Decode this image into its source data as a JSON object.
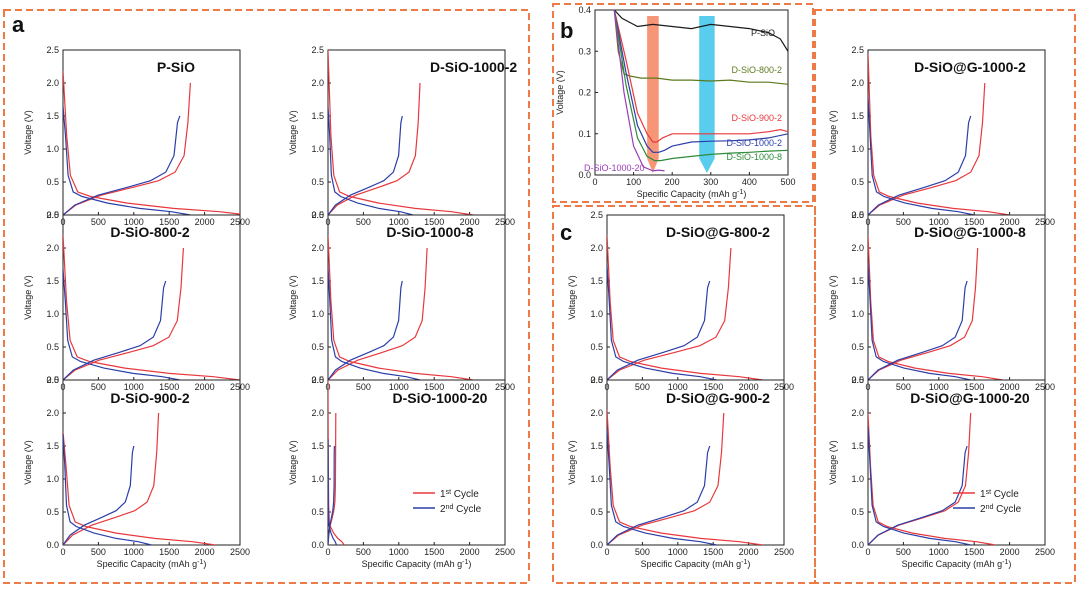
{
  "labels": {
    "a": "a",
    "b": "b",
    "c": "c"
  },
  "axis_text": {
    "xlabel": "Specific Capacity (mAh g",
    "xlabel_sup": "-1",
    "xlabel_end": ")",
    "ylabel": "Voltage (V)"
  },
  "legend": {
    "first": "1",
    "first_sup": "st",
    "first_rest": " Cycle",
    "second": "2",
    "second_sup": "nd",
    "second_rest": " Cycle"
  },
  "colors": {
    "first": "#e8383d",
    "second": "#2b3fa8",
    "border": "#ee7a48"
  },
  "chart_data": [
    {
      "type": "line",
      "panel": "a",
      "title": "P-SiO",
      "xlabel": "Specific Capacity (mAh g-1)",
      "ylabel": "Voltage (V)",
      "xlim": [
        0,
        2500
      ],
      "ylim": [
        0,
        2.5
      ],
      "xticks": [
        0,
        500,
        1000,
        1500,
        2000,
        2500
      ],
      "yticks": [
        0.0,
        0.5,
        1.0,
        1.5,
        2.0,
        2.5
      ],
      "series": [
        {
          "name": "1st Cycle",
          "initial_voltage": 2.18,
          "discharge_capacity": 2600,
          "charge_capacity": 1800,
          "charge_end_voltage": 2.0
        },
        {
          "name": "2nd Cycle",
          "initial_voltage": 1.65,
          "discharge_capacity": 1800,
          "charge_capacity": 1650,
          "charge_end_voltage": 1.5
        }
      ]
    },
    {
      "type": "line",
      "panel": "a",
      "title": "D-SiO-1000-2",
      "xlabel": "Specific Capacity (mAh g-1)",
      "ylabel": "Voltage (V)",
      "xlim": [
        0,
        2500
      ],
      "ylim": [
        0,
        2.5
      ],
      "xticks": [
        0,
        500,
        1000,
        1500,
        2000,
        2500
      ],
      "yticks": [
        0.0,
        0.5,
        1.0,
        1.5,
        2.0,
        2.5
      ],
      "series": [
        {
          "name": "1st Cycle",
          "initial_voltage": 2.5,
          "discharge_capacity": 2050,
          "charge_capacity": 1300,
          "charge_end_voltage": 2.0
        },
        {
          "name": "2nd Cycle",
          "initial_voltage": 1.65,
          "discharge_capacity": 1200,
          "charge_capacity": 1050,
          "charge_end_voltage": 1.5
        }
      ]
    },
    {
      "type": "line",
      "panel": "a",
      "title": "D-SiO-800-2",
      "xlabel": "Specific Capacity (mAh g-1)",
      "ylabel": "Voltage (V)",
      "xlim": [
        0,
        2500
      ],
      "ylim": [
        0,
        2.5
      ],
      "xticks": [
        0,
        500,
        1000,
        1500,
        2000,
        2500
      ],
      "yticks": [
        0.0,
        0.5,
        1.0,
        1.5,
        2.0,
        2.5
      ],
      "series": [
        {
          "name": "1st Cycle",
          "initial_voltage": 2.2,
          "discharge_capacity": 2500,
          "charge_capacity": 1700,
          "charge_end_voltage": 2.0
        },
        {
          "name": "2nd Cycle",
          "initial_voltage": 1.68,
          "discharge_capacity": 1650,
          "charge_capacity": 1450,
          "charge_end_voltage": 1.5
        }
      ]
    },
    {
      "type": "line",
      "panel": "a",
      "title": "D-SiO-1000-8",
      "xlabel": "Specific Capacity (mAh g-1)",
      "ylabel": "Voltage (V)",
      "xlim": [
        0,
        2500
      ],
      "ylim": [
        0,
        2.5
      ],
      "xticks": [
        0,
        500,
        1000,
        1500,
        2000,
        2500
      ],
      "yticks": [
        0.0,
        0.5,
        1.0,
        1.5,
        2.0,
        2.5
      ],
      "series": [
        {
          "name": "1st Cycle",
          "initial_voltage": 2.2,
          "discharge_capacity": 2050,
          "charge_capacity": 1400,
          "charge_end_voltage": 2.0
        },
        {
          "name": "2nd Cycle",
          "initial_voltage": 1.72,
          "discharge_capacity": 1300,
          "charge_capacity": 1050,
          "charge_end_voltage": 1.5
        }
      ]
    },
    {
      "type": "line",
      "panel": "a",
      "title": "D-SiO-900-2",
      "xlabel": "Specific Capacity (mAh g-1)",
      "ylabel": "Voltage (V)",
      "xlim": [
        0,
        2500
      ],
      "ylim": [
        0,
        2.5
      ],
      "xticks": [
        0,
        500,
        1000,
        1500,
        2000,
        2500
      ],
      "yticks": [
        0.0,
        0.5,
        1.0,
        1.5,
        2.0,
        2.5
      ],
      "series": [
        {
          "name": "1st Cycle",
          "initial_voltage": 1.72,
          "discharge_capacity": 2150,
          "charge_capacity": 1350,
          "charge_end_voltage": 2.0
        },
        {
          "name": "2nd Cycle",
          "initial_voltage": 1.68,
          "discharge_capacity": 1250,
          "charge_capacity": 1000,
          "charge_end_voltage": 1.5
        }
      ]
    },
    {
      "type": "line",
      "panel": "a",
      "title": "D-SiO-1000-20",
      "xlabel": "Specific Capacity (mAh g-1)",
      "ylabel": "Voltage (V)",
      "xlim": [
        0,
        2500
      ],
      "ylim": [
        0,
        2.5
      ],
      "xticks": [
        0,
        500,
        1000,
        1500,
        2000,
        2500
      ],
      "yticks": [
        0.0,
        0.5,
        1.0,
        1.5,
        2.0,
        2.5
      ],
      "series": [
        {
          "name": "1st Cycle",
          "initial_voltage": 2.5,
          "discharge_capacity": 230,
          "charge_capacity": 110,
          "charge_end_voltage": 2.0
        },
        {
          "name": "2nd Cycle",
          "initial_voltage": 1.6,
          "discharge_capacity": 120,
          "charge_capacity": 90,
          "charge_end_voltage": 1.5
        }
      ]
    },
    {
      "type": "line",
      "panel": "b",
      "title": "",
      "xlabel": "Specific Capacity (mAh g-1)",
      "ylabel": "Voltage (V)",
      "xlim": [
        0,
        500
      ],
      "ylim": [
        0,
        0.4
      ],
      "xticks": [
        0,
        100,
        200,
        300,
        400,
        500
      ],
      "yticks": [
        0.0,
        0.1,
        0.2,
        0.3,
        0.4
      ],
      "highlight_bands": [
        {
          "x": [
            135,
            165
          ],
          "color": "#f4845f"
        },
        {
          "x": [
            270,
            310
          ],
          "color": "#3cc4ea"
        }
      ],
      "series": [
        {
          "name": "P-SiO",
          "color": "#1a1a1a",
          "x": [
            50,
            70,
            90,
            110,
            150,
            200,
            250,
            300,
            350,
            400,
            450,
            480,
            500
          ],
          "y": [
            0.4,
            0.38,
            0.37,
            0.36,
            0.365,
            0.36,
            0.355,
            0.365,
            0.36,
            0.355,
            0.345,
            0.33,
            0.3
          ]
        },
        {
          "name": "D-SiO-800-2",
          "color": "#5b7a1e",
          "x": [
            50,
            60,
            75,
            90,
            120,
            160,
            200,
            250,
            300,
            350,
            400,
            450,
            500
          ],
          "y": [
            0.4,
            0.3,
            0.245,
            0.24,
            0.235,
            0.235,
            0.23,
            0.23,
            0.228,
            0.23,
            0.225,
            0.225,
            0.22
          ]
        },
        {
          "name": "D-SiO-900-2",
          "color": "#e8383d",
          "x": [
            50,
            80,
            110,
            135,
            150,
            160,
            175,
            200,
            250,
            300,
            350,
            400,
            450,
            480,
            500
          ],
          "y": [
            0.4,
            0.28,
            0.15,
            0.1,
            0.08,
            0.08,
            0.09,
            0.1,
            0.1,
            0.1,
            0.1,
            0.1,
            0.105,
            0.11,
            0.105
          ]
        },
        {
          "name": "D-SiO-1000-2",
          "color": "#2b3fa8",
          "x": [
            50,
            80,
            110,
            135,
            150,
            165,
            180,
            200,
            250,
            300,
            350,
            400,
            450,
            500
          ],
          "y": [
            0.4,
            0.25,
            0.12,
            0.07,
            0.055,
            0.055,
            0.06,
            0.07,
            0.08,
            0.082,
            0.083,
            0.085,
            0.09,
            0.1
          ]
        },
        {
          "name": "D-SiO-1000-8",
          "color": "#2e8b3a",
          "x": [
            50,
            80,
            110,
            135,
            155,
            170,
            200,
            250,
            300,
            350,
            400,
            450,
            500
          ],
          "y": [
            0.4,
            0.22,
            0.09,
            0.045,
            0.035,
            0.035,
            0.04,
            0.045,
            0.05,
            0.053,
            0.055,
            0.058,
            0.06
          ]
        },
        {
          "name": "D-SiO-1000-20",
          "color": "#9a3db8",
          "x": [
            50,
            75,
            100,
            125,
            150,
            165,
            180
          ],
          "y": [
            0.4,
            0.2,
            0.07,
            0.02,
            0.01,
            0.012,
            0.01
          ]
        }
      ]
    },
    {
      "type": "line",
      "panel": "c",
      "title": "D-SiO@G-1000-2",
      "xlabel": "Specific Capacity (mAh g-1)",
      "ylabel": "Voltage (V)",
      "xlim": [
        0,
        2500
      ],
      "ylim": [
        0,
        2.5
      ],
      "xticks": [
        0,
        500,
        1000,
        1500,
        2000,
        2500
      ],
      "yticks": [
        0.0,
        0.5,
        1.0,
        1.5,
        2.0,
        2.5
      ],
      "series": [
        {
          "name": "1st Cycle",
          "initial_voltage": 2.45,
          "discharge_capacity": 2000,
          "charge_capacity": 1650,
          "charge_end_voltage": 2.0
        },
        {
          "name": "2nd Cycle",
          "initial_voltage": 1.8,
          "discharge_capacity": 1500,
          "charge_capacity": 1450,
          "charge_end_voltage": 1.5
        }
      ]
    },
    {
      "type": "line",
      "panel": "c",
      "title": "D-SiO@G-800-2",
      "xlabel": "Specific Capacity (mAh g-1)",
      "ylabel": "Voltage (V)",
      "xlim": [
        0,
        2500
      ],
      "ylim": [
        0,
        2.5
      ],
      "xticks": [
        0,
        500,
        1000,
        1500,
        2000,
        2500
      ],
      "yticks": [
        0.0,
        0.5,
        1.0,
        1.5,
        2.0,
        2.5
      ],
      "series": [
        {
          "name": "1st Cycle",
          "initial_voltage": 2.2,
          "discharge_capacity": 2200,
          "charge_capacity": 1750,
          "charge_end_voltage": 2.0
        },
        {
          "name": "2nd Cycle",
          "initial_voltage": 1.75,
          "discharge_capacity": 1550,
          "charge_capacity": 1450,
          "charge_end_voltage": 1.5
        }
      ]
    },
    {
      "type": "line",
      "panel": "c",
      "title": "D-SiO@G-1000-8",
      "xlabel": "Specific Capacity (mAh g-1)",
      "ylabel": "Voltage (V)",
      "xlim": [
        0,
        2500
      ],
      "ylim": [
        0,
        2.5
      ],
      "xticks": [
        0,
        500,
        1000,
        1500,
        2000,
        2500
      ],
      "yticks": [
        0.0,
        0.5,
        1.0,
        1.5,
        2.0,
        2.5
      ],
      "series": [
        {
          "name": "1st Cycle",
          "initial_voltage": 2.2,
          "discharge_capacity": 1900,
          "charge_capacity": 1550,
          "charge_end_voltage": 2.0
        },
        {
          "name": "2nd Cycle",
          "initial_voltage": 1.78,
          "discharge_capacity": 1450,
          "charge_capacity": 1400,
          "charge_end_voltage": 1.5
        }
      ]
    },
    {
      "type": "line",
      "panel": "c",
      "title": "D-SiO@G-900-2",
      "xlabel": "Specific Capacity (mAh g-1)",
      "ylabel": "Voltage (V)",
      "xlim": [
        0,
        2500
      ],
      "ylim": [
        0,
        2.5
      ],
      "xticks": [
        0,
        500,
        1000,
        1500,
        2000,
        2500
      ],
      "yticks": [
        0.0,
        0.5,
        1.0,
        1.5,
        2.0,
        2.5
      ],
      "series": [
        {
          "name": "1st Cycle",
          "initial_voltage": 2.05,
          "discharge_capacity": 2200,
          "charge_capacity": 1650,
          "charge_end_voltage": 2.0
        },
        {
          "name": "2nd Cycle",
          "initial_voltage": 1.75,
          "discharge_capacity": 1550,
          "charge_capacity": 1450,
          "charge_end_voltage": 1.5
        }
      ]
    },
    {
      "type": "line",
      "panel": "c",
      "title": "D-SiO@G-1000-20",
      "xlabel": "Specific Capacity (mAh g-1)",
      "ylabel": "Voltage (V)",
      "xlim": [
        0,
        2500
      ],
      "ylim": [
        0,
        2.5
      ],
      "xticks": [
        0,
        500,
        1000,
        1500,
        2000,
        2500
      ],
      "yticks": [
        0.0,
        0.5,
        1.0,
        1.5,
        2.0,
        2.5
      ],
      "series": [
        {
          "name": "1st Cycle",
          "initial_voltage": 2.0,
          "discharge_capacity": 1800,
          "charge_capacity": 1450,
          "charge_end_voltage": 2.0
        },
        {
          "name": "2nd Cycle",
          "initial_voltage": 1.8,
          "discharge_capacity": 1450,
          "charge_capacity": 1400,
          "charge_end_voltage": 1.5
        }
      ]
    }
  ]
}
